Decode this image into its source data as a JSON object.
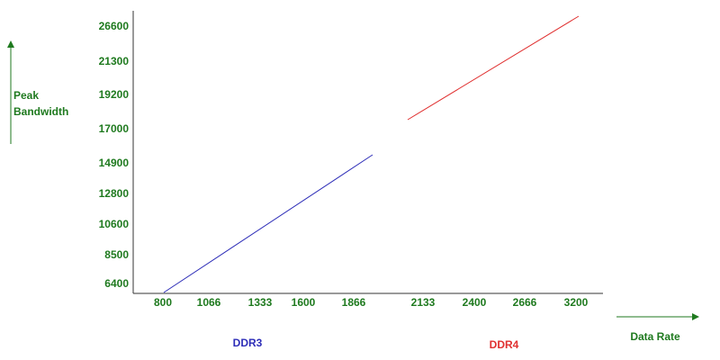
{
  "y_axis": {
    "label": [
      "Peak",
      "Bandwidth"
    ],
    "ticks": [
      "6400",
      "8500",
      "10600",
      "12800",
      "14900",
      "17000",
      "19200",
      "21300",
      "26600"
    ]
  },
  "x_axis": {
    "label": "Data Rate",
    "ticks": [
      "800",
      "1066",
      "1333",
      "1600",
      "1866",
      "2133",
      "2400",
      "2666",
      "3200"
    ]
  },
  "series": [
    {
      "name": "DDR3",
      "color": "#2e2eb8"
    },
    {
      "name": "DDR4",
      "color": "#e03030"
    }
  ]
}
